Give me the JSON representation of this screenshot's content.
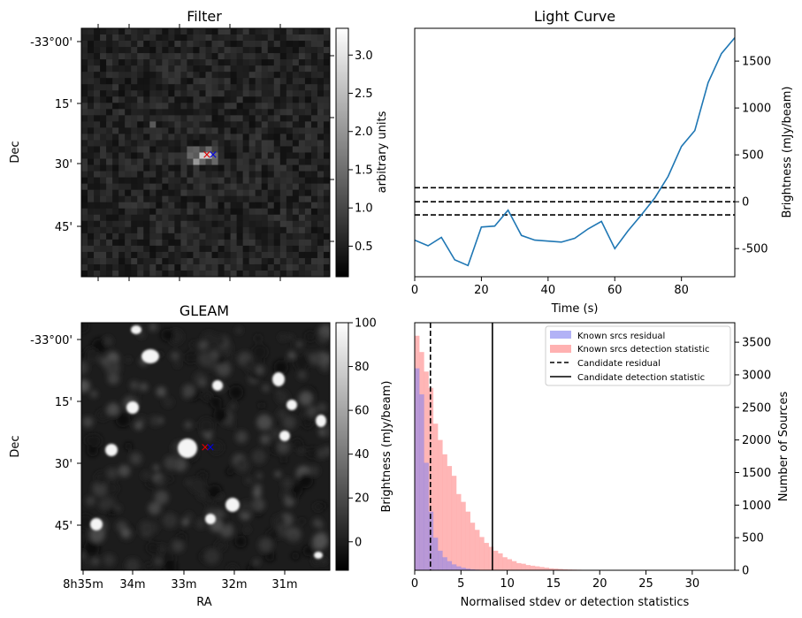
{
  "panels": {
    "filter": {
      "title": "Filter",
      "ylabel": "Dec",
      "dec_ticks": [
        "-33°00'",
        "15'",
        "30'",
        "45'"
      ],
      "colorbar": {
        "label": "arbitrary units",
        "ticks": [
          "0.5",
          "1.0",
          "1.5",
          "2.0",
          "2.5",
          "3.0"
        ],
        "range": [
          0.1,
          3.35
        ]
      },
      "markers": {
        "red": "×",
        "blue": "×"
      }
    },
    "gleam": {
      "title": "GLEAM",
      "xlabel": "RA",
      "ylabel": "Dec",
      "dec_ticks": [
        "-33°00'",
        "15'",
        "30'",
        "45'"
      ],
      "ra_ticks": [
        "8h35m",
        "34m",
        "33m",
        "32m",
        "31m"
      ],
      "colorbar": {
        "label": "Brightness (mJy/beam)",
        "ticks": [
          "0",
          "20",
          "40",
          "60",
          "80",
          "100"
        ],
        "range": [
          -13,
          100
        ]
      },
      "markers": {
        "red": "×",
        "blue": "×"
      }
    }
  },
  "chart_data": [
    {
      "type": "line",
      "title": "Light Curve",
      "xlabel": "Time (s)",
      "ylabel": "Brightness (mJy/beam)",
      "xlim": [
        0,
        96
      ],
      "ylim": [
        -800,
        1850
      ],
      "x_ticks": [
        0,
        20,
        40,
        60,
        80
      ],
      "y_ticks": [
        -500,
        0,
        500,
        1000,
        1500
      ],
      "x": [
        0,
        4,
        8,
        12,
        16,
        20,
        24,
        28,
        32,
        36,
        40,
        44,
        48,
        52,
        56,
        60,
        64,
        68,
        72,
        76,
        80,
        84,
        88,
        92,
        96
      ],
      "values": [
        -410,
        -470,
        -380,
        -620,
        -680,
        -270,
        -260,
        -90,
        -360,
        -410,
        -420,
        -430,
        -390,
        -290,
        -210,
        -500,
        -310,
        -140,
        40,
        270,
        590,
        760,
        1270,
        1580,
        1750
      ],
      "hlines": [
        150,
        0,
        -140
      ],
      "color": "#1f77b4"
    },
    {
      "type": "bar",
      "xlabel": "Normalised stdev or detection statistics",
      "ylabel": "Number of Sources",
      "xlim": [
        0,
        34.6
      ],
      "ylim": [
        0,
        3800
      ],
      "x_ticks": [
        0,
        5,
        10,
        15,
        20,
        25,
        30
      ],
      "y_ticks": [
        0,
        500,
        1000,
        1500,
        2000,
        2500,
        3000,
        3500
      ],
      "bin_width": 0.5,
      "series": [
        {
          "name": "Known srcs residual",
          "color": "#7f7ff0",
          "values": [
            3100,
            2700,
            1650,
            900,
            500,
            300,
            200,
            140,
            90,
            60,
            40,
            25,
            15,
            10,
            6,
            4,
            3,
            2,
            1,
            1
          ]
        },
        {
          "name": "Known srcs detection statistic",
          "color": "#ff9e9e",
          "values": [
            3600,
            3350,
            3050,
            2800,
            2250,
            2000,
            1780,
            1600,
            1450,
            1170,
            1050,
            900,
            730,
            620,
            510,
            420,
            360,
            300,
            260,
            200,
            170,
            140,
            110,
            100,
            80,
            70,
            60,
            50,
            40,
            30,
            25,
            20,
            15,
            12,
            10,
            8,
            6,
            5,
            4,
            3,
            2,
            2,
            1,
            1,
            1,
            1,
            1,
            1,
            1,
            1,
            1,
            1,
            1,
            1,
            1,
            1,
            1,
            1,
            1,
            1,
            1,
            1,
            1,
            1,
            1,
            1,
            1,
            1,
            1
          ]
        }
      ],
      "vlines": [
        {
          "name": "Candidate residual",
          "x": 1.7,
          "style": "dashed"
        },
        {
          "name": "Candidate detection statistic",
          "x": 8.4,
          "style": "solid"
        }
      ],
      "legend_position": "top-right"
    }
  ]
}
